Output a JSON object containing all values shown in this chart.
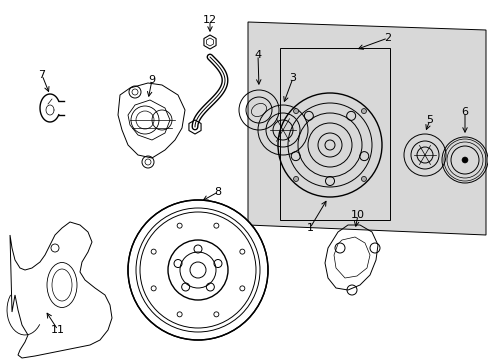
{
  "background_color": "#ffffff",
  "line_color": "#000000",
  "panel_fill": "#dcdcdc",
  "fig_width": 4.89,
  "fig_height": 3.6,
  "dpi": 100
}
